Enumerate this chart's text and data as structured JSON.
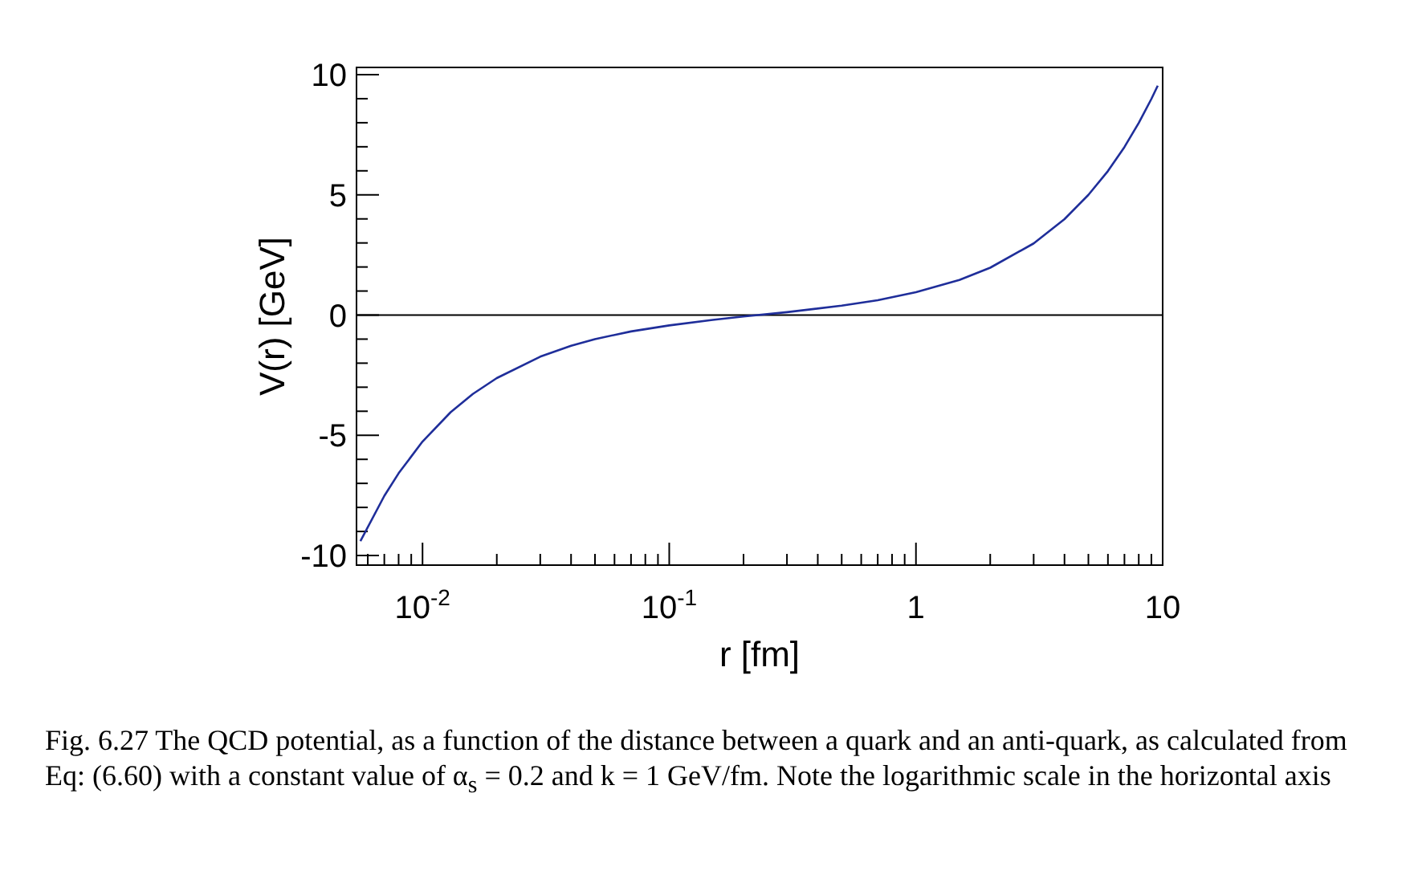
{
  "chart_data": {
    "type": "line",
    "xlabel": "r [fm]",
    "ylabel": "V(r)  [GeV]",
    "log": "x",
    "grid": false,
    "marker": "none",
    "line_style": "solid",
    "xlim": [
      0.0054,
      10
    ],
    "ylim": [
      -10.4,
      10.3
    ],
    "xticks": [
      {
        "value": 0.01,
        "label": "10$^{-2}$"
      },
      {
        "value": 0.1,
        "label": "10$^{-1}$"
      },
      1,
      10,
      {
        "value": 0.006,
        "label": null
      },
      {
        "value": 0.007,
        "label": null
      },
      {
        "value": 0.008,
        "label": null
      },
      {
        "value": 0.009,
        "label": null
      },
      {
        "value": 0.02,
        "label": null
      },
      {
        "value": 0.03,
        "label": null
      },
      {
        "value": 0.04,
        "label": null
      },
      {
        "value": 0.05,
        "label": null
      },
      {
        "value": 0.06,
        "label": null
      },
      {
        "value": 0.07,
        "label": null
      },
      {
        "value": 0.08,
        "label": null
      },
      {
        "value": 0.09,
        "label": null
      },
      {
        "value": 0.2,
        "label": null
      },
      {
        "value": 0.3,
        "label": null
      },
      {
        "value": 0.4,
        "label": null
      },
      {
        "value": 0.5,
        "label": null
      },
      {
        "value": 0.6,
        "label": null
      },
      {
        "value": 0.7,
        "label": null
      },
      {
        "value": 0.8,
        "label": null
      },
      {
        "value": 0.9,
        "label": null
      },
      {
        "value": 2,
        "label": null
      },
      {
        "value": 3,
        "label": null
      },
      {
        "value": 4,
        "label": null
      },
      {
        "value": 5,
        "label": null
      },
      {
        "value": 6,
        "label": null
      },
      {
        "value": 7,
        "label": null
      },
      {
        "value": 8,
        "label": null
      },
      {
        "value": 9,
        "label": null
      }
    ],
    "yticks": [
      -10,
      -5,
      0,
      5,
      10,
      {
        "value": -9,
        "label": null
      },
      {
        "value": -8,
        "label": null
      },
      {
        "value": -7,
        "label": null
      },
      {
        "value": -6,
        "label": null
      },
      {
        "value": -4,
        "label": null
      },
      {
        "value": -3,
        "label": null
      },
      {
        "value": -2,
        "label": null
      },
      {
        "value": -1,
        "label": null
      },
      {
        "value": 1,
        "label": null
      },
      {
        "value": 2,
        "label": null
      },
      {
        "value": 3,
        "label": null
      },
      {
        "value": 4,
        "label": null
      },
      {
        "value": 6,
        "label": null
      },
      {
        "value": 7,
        "label": null
      },
      {
        "value": 8,
        "label": null
      },
      {
        "value": 9,
        "label": null
      }
    ],
    "ref_lines": [
      {
        "axis": "y",
        "value": 0,
        "color": "#000000"
      }
    ],
    "series": [
      {
        "color": "#1f2e9a",
        "x": [
          0.0056,
          0.007,
          0.008,
          0.01,
          0.013,
          0.016,
          0.02,
          0.03,
          0.04,
          0.05,
          0.07,
          0.1,
          0.15,
          0.2,
          0.3,
          0.5,
          0.7,
          1,
          1.5,
          2,
          3,
          4,
          5,
          6,
          7,
          8,
          9,
          9.55
        ],
        "values": [
          -9.4,
          -7.52,
          -6.58,
          -5.26,
          -4.04,
          -3.28,
          -2.62,
          -1.73,
          -1.28,
          -1.0,
          -0.68,
          -0.43,
          -0.2,
          -0.06,
          0.12,
          0.39,
          0.62,
          0.95,
          1.46,
          1.97,
          2.98,
          3.99,
          5.0,
          5.99,
          6.99,
          7.99,
          8.99,
          9.54
        ]
      }
    ],
    "annotations": [
      "Fig. 6.27  The QCD potential, as a function of the distance between a quark and an anti-quark, as calculated from Eq: (6.60) with a constant value of α$_{s}$ = 0.2 and k = 1 GeV/fm. Note the logarithmic scale in the horizontal axis"
    ]
  }
}
